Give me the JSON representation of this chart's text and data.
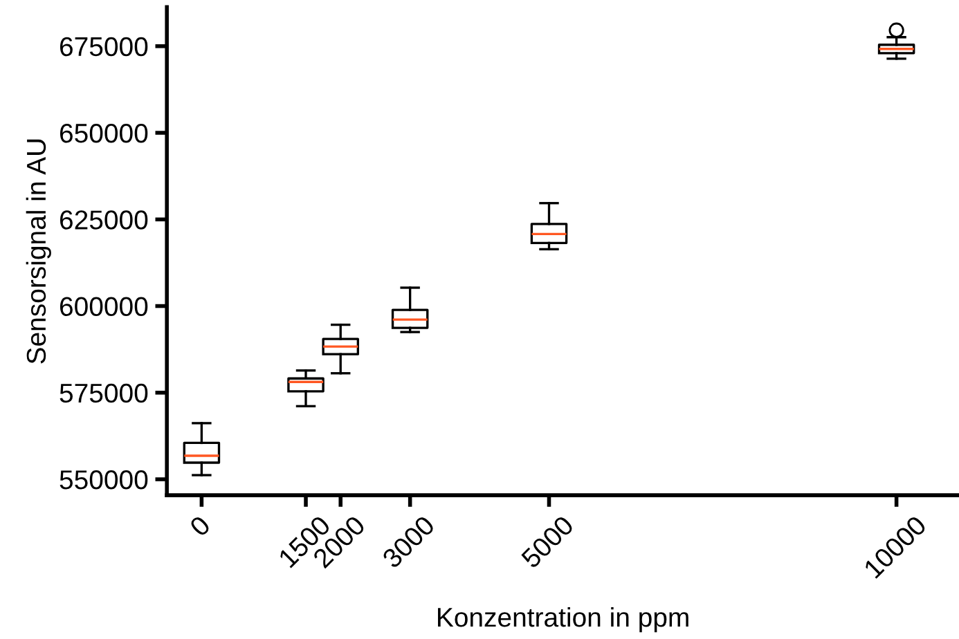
{
  "chart_data": {
    "type": "box",
    "xlabel": "Konzentration in ppm",
    "ylabel": "Sensorsignal in AU",
    "x": [
      0,
      1500,
      2000,
      3000,
      5000,
      10000
    ],
    "boxes": [
      {
        "low": 551200,
        "q1": 554800,
        "median": 556800,
        "q3": 560500,
        "high": 566200
      },
      {
        "low": 571100,
        "q1": 575400,
        "median": 578100,
        "q3": 579100,
        "high": 581400
      },
      {
        "low": 580600,
        "q1": 586100,
        "median": 588300,
        "q3": 590500,
        "high": 594600
      },
      {
        "low": 592500,
        "q1": 593700,
        "median": 596100,
        "q3": 598900,
        "high": 605300
      },
      {
        "low": 616400,
        "q1": 618200,
        "median": 620800,
        "q3": 623700,
        "high": 629700
      },
      {
        "low": 671400,
        "q1": 673000,
        "median": 674200,
        "q3": 675400,
        "high": 677600,
        "outliers": [
          679600
        ]
      }
    ],
    "xlim": [
      -500,
      10900
    ],
    "xticks": [
      0,
      1500,
      2000,
      3000,
      5000,
      10000
    ],
    "ylim": [
      545400,
      686300
    ],
    "yticks": [
      550000,
      575000,
      600000,
      625000,
      650000,
      675000
    ],
    "grid": false
  }
}
